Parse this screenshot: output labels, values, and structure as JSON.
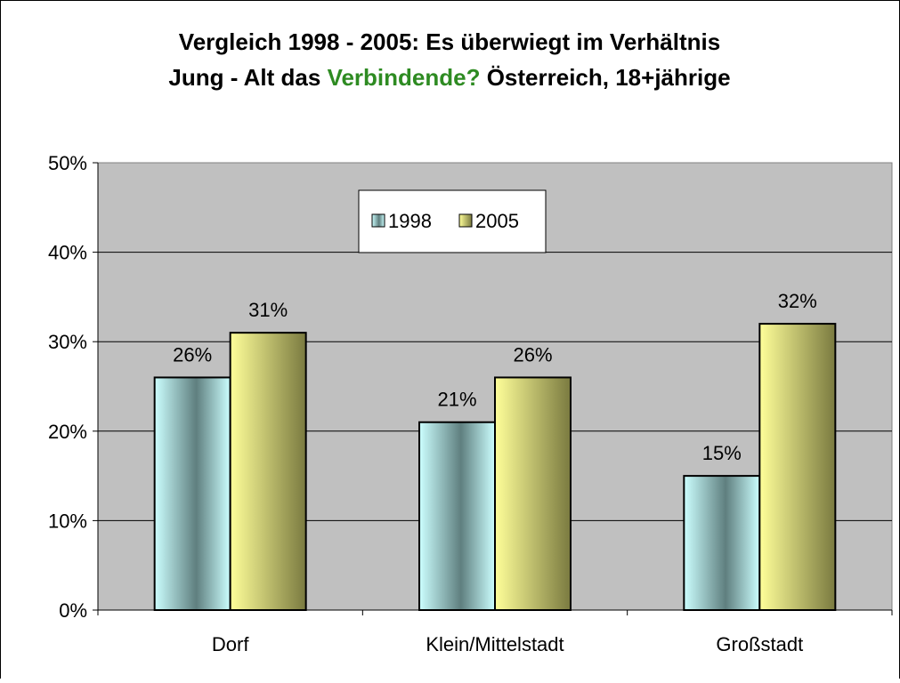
{
  "chart_data": {
    "type": "bar",
    "title": [
      [
        {
          "text": "Vergleich 1998 - 2005: Es überwiegt im Verhältnis",
          "color": "#000000"
        }
      ],
      [
        {
          "text": "Jung - Alt das ",
          "color": "#000000"
        },
        {
          "text": "Verbindende?",
          "color": "#2e8b22"
        },
        {
          "text": " Österreich, 18+jährige",
          "color": "#000000"
        }
      ]
    ],
    "categories": [
      "Dorf",
      "Klein/Mittelstadt",
      "Großstadt"
    ],
    "series": [
      {
        "name": "1998",
        "color": "#ccffff",
        "shade": "#5f7f7f",
        "values": [
          26,
          21,
          15
        ],
        "value_labels": [
          "26%",
          "21%",
          "15%"
        ]
      },
      {
        "name": "2005",
        "color": "#ffff99",
        "shade": "#7a7a40",
        "values": [
          31,
          26,
          32
        ],
        "value_labels": [
          "31%",
          "26%",
          "32%"
        ]
      }
    ],
    "ylim": [
      0,
      50
    ],
    "yticks": [
      {
        "value": 0,
        "label": "0%"
      },
      {
        "value": 10,
        "label": "10%"
      },
      {
        "value": 20,
        "label": "20%"
      },
      {
        "value": 30,
        "label": "30%"
      },
      {
        "value": 40,
        "label": "40%"
      },
      {
        "value": 50,
        "label": "50%"
      }
    ],
    "grid": true,
    "legend": "top"
  }
}
